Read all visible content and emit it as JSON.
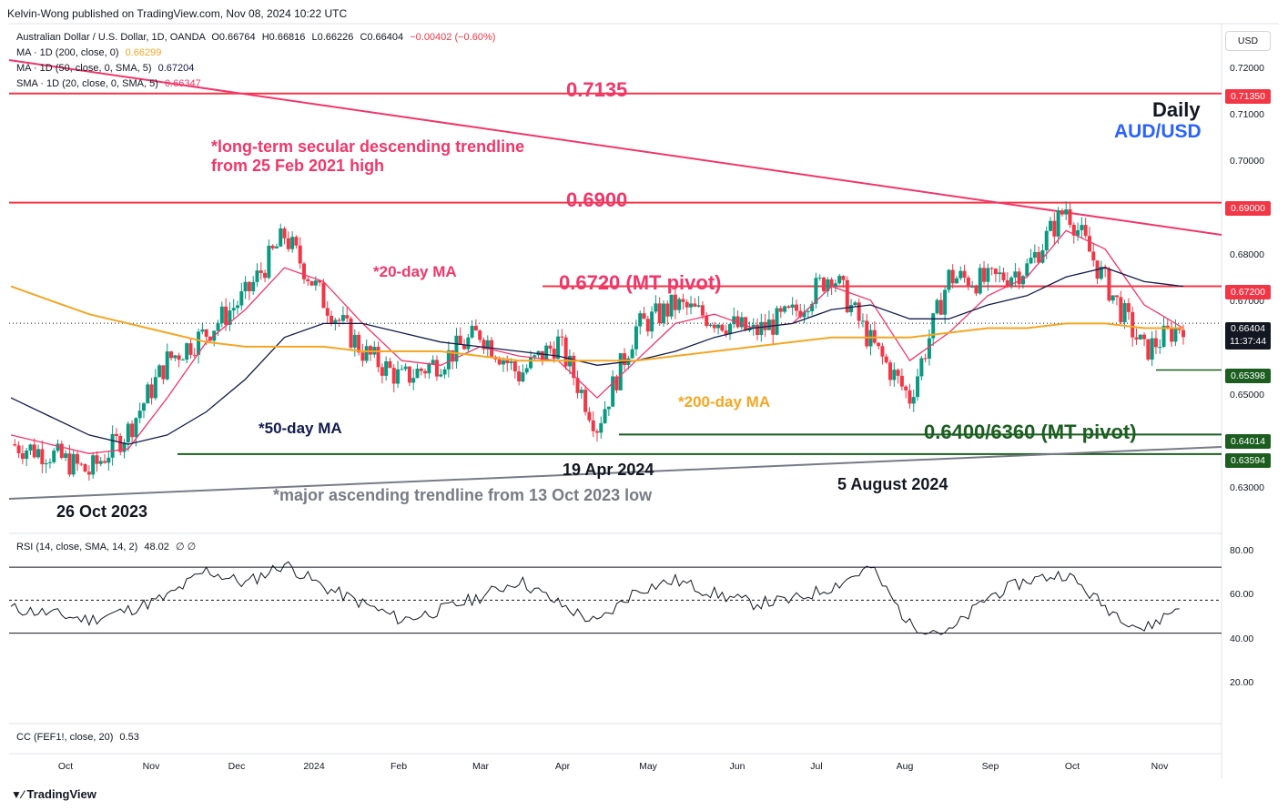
{
  "header": {
    "publisher": "Kelvin-Wong published on TradingView.com, Nov 08, 2024 10:22 UTC"
  },
  "legend": {
    "symbol": "Australian Dollar / U.S. Dollar, 1D, OANDA",
    "o": "O0.66764",
    "h": "H0.66816",
    "l": "L0.66226",
    "c": "C0.66404",
    "chg": "−0.00402 (−0.60%)",
    "ma200_label": "MA · 1D (200, close, 0)",
    "ma200_val": "0.66299",
    "ma50_label": "MA · 1D (50, close, 0, SMA, 5)",
    "ma50_val": "0.67204",
    "sma20_label": "SMA · 1D (20, close, 0, SMA, 5)",
    "sma20_val": "0.66347"
  },
  "annotations": {
    "level_7135": "0.7135",
    "level_6900": "0.6900",
    "level_6720": "0.6720 (MT pivot)",
    "level_6400": "0.6400/6360 (MT pivot)",
    "daily": "Daily",
    "pair": "AUD/USD",
    "trendline_desc_1": "*long-term secular descending trendline",
    "trendline_desc_2": "from 25 Feb 2021 high",
    "ma20": "*20-day MA",
    "ma50": "*50-day MA",
    "ma200": "*200-day MA",
    "trendline_asc": "*major ascending trendline from 13 Oct 2023 low",
    "date_oct": "26 Oct 2023",
    "date_apr": "19 Apr 2024",
    "date_aug": "5 August 2024"
  },
  "price_axis": {
    "currency": "USD",
    "ticks": [
      "0.72000",
      "0.71000",
      "0.70000",
      "0.68000",
      "0.67000",
      "0.65000",
      "0.63000"
    ]
  },
  "price_boxes": {
    "b7135": "0.71350",
    "b6900": "0.69000",
    "b6720": "0.67200",
    "b_last": "0.66404",
    "b_timer": "11:37:44",
    "b6539": "0.65398",
    "b6401": "0.64014",
    "b6359": "0.63594"
  },
  "rsi": {
    "label": "RSI (14, close, SMA, 14, 2)",
    "value": "48.02",
    "extra": "∅ ∅",
    "ticks": [
      "80.00",
      "60.00",
      "40.00",
      "20.00"
    ]
  },
  "cc": {
    "label": "CC (FEF1!, close, 20)",
    "value": "0.53"
  },
  "time_axis": [
    "Oct",
    "Nov",
    "Dec",
    "2024",
    "Feb",
    "Mar",
    "Apr",
    "May",
    "Jun",
    "Jul",
    "Aug",
    "Sep",
    "Oct",
    "Nov"
  ],
  "branding": {
    "logo": "TradingView"
  },
  "colors": {
    "up": "#089981",
    "down": "#f23645",
    "ma20": "#f23669",
    "ma50": "#131b4d",
    "ma200": "#f5a623",
    "pivot_green": "#1b5e20",
    "accent_blue": "#2962ff"
  },
  "chart_data": {
    "type": "candlestick",
    "title": "Australian Dollar / U.S. Dollar, 1D, OANDA",
    "x": [
      "2023-10-02",
      "2023-10-16",
      "2023-10-26",
      "2023-11-06",
      "2023-11-20",
      "2023-12-04",
      "2023-12-18",
      "2023-12-28",
      "2024-01-10",
      "2024-01-24",
      "2024-02-07",
      "2024-02-21",
      "2024-03-07",
      "2024-03-21",
      "2024-04-04",
      "2024-04-19",
      "2024-05-03",
      "2024-05-15",
      "2024-05-29",
      "2024-06-12",
      "2024-06-26",
      "2024-07-11",
      "2024-07-24",
      "2024-08-05",
      "2024-08-19",
      "2024-09-02",
      "2024-09-16",
      "2024-09-30",
      "2024-10-14",
      "2024-10-28",
      "2024-11-07"
    ],
    "close": [
      0.638,
      0.636,
      0.632,
      0.641,
      0.656,
      0.662,
      0.67,
      0.683,
      0.669,
      0.658,
      0.652,
      0.656,
      0.662,
      0.653,
      0.66,
      0.642,
      0.663,
      0.668,
      0.665,
      0.662,
      0.666,
      0.675,
      0.66,
      0.648,
      0.674,
      0.673,
      0.676,
      0.689,
      0.673,
      0.658,
      0.664
    ],
    "ylim": [
      0.62,
      0.725
    ],
    "series": [
      {
        "name": "SMA 20",
        "values": [
          0.64,
          0.638,
          0.636,
          0.637,
          0.648,
          0.66,
          0.667,
          0.676,
          0.673,
          0.664,
          0.656,
          0.655,
          0.659,
          0.657,
          0.656,
          0.648,
          0.656,
          0.664,
          0.666,
          0.663,
          0.664,
          0.672,
          0.669,
          0.656,
          0.662,
          0.67,
          0.674,
          0.684,
          0.68,
          0.668,
          0.663
        ]
      },
      {
        "name": "MA 50",
        "values": [
          0.648,
          0.644,
          0.64,
          0.638,
          0.64,
          0.645,
          0.652,
          0.661,
          0.664,
          0.664,
          0.662,
          0.66,
          0.659,
          0.658,
          0.657,
          0.655,
          0.656,
          0.658,
          0.661,
          0.663,
          0.664,
          0.667,
          0.668,
          0.665,
          0.665,
          0.668,
          0.67,
          0.674,
          0.676,
          0.673,
          0.672
        ]
      },
      {
        "name": "MA 200",
        "values": [
          0.672,
          0.669,
          0.666,
          0.664,
          0.662,
          0.66,
          0.659,
          0.659,
          0.659,
          0.658,
          0.658,
          0.658,
          0.657,
          0.656,
          0.656,
          0.656,
          0.656,
          0.657,
          0.658,
          0.659,
          0.66,
          0.661,
          0.661,
          0.661,
          0.662,
          0.663,
          0.663,
          0.664,
          0.664,
          0.663,
          0.663
        ]
      }
    ],
    "levels": [
      0.7135,
      0.69,
      0.672,
      0.6401,
      0.6359,
      0.654
    ],
    "rsi": {
      "name": "RSI 14",
      "values": [
        45,
        42,
        38,
        44,
        52,
        68,
        60,
        72,
        58,
        48,
        38,
        44,
        52,
        62,
        48,
        36,
        56,
        62,
        54,
        48,
        50,
        58,
        70,
        35,
        30,
        52,
        62,
        66,
        46,
        32,
        48
      ],
      "ylim": [
        0,
        100
      ],
      "bands": [
        70,
        50,
        30
      ]
    }
  }
}
